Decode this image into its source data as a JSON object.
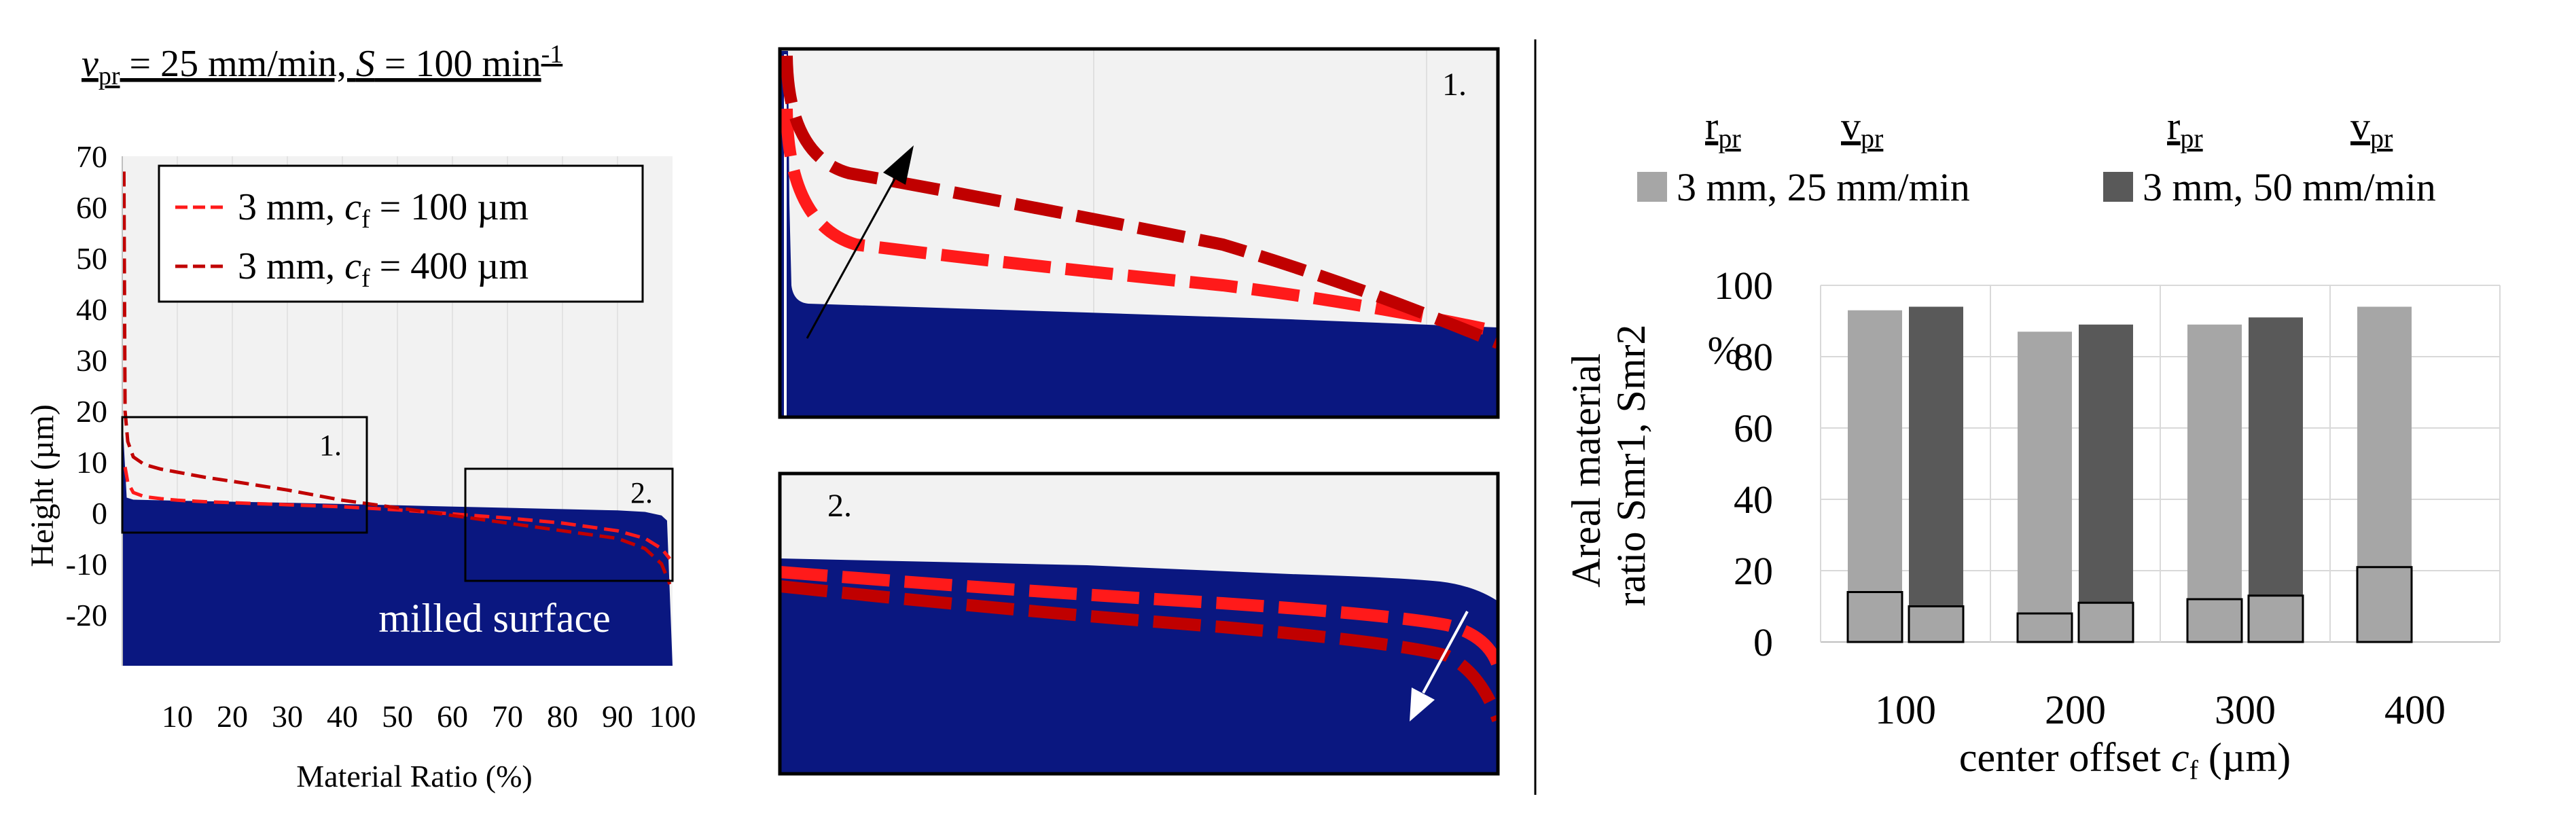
{
  "chart_data": [
    {
      "type": "line",
      "title": {
        "v_sym": "v",
        "v_sub": "pr",
        "v_rest": " = 25 mm/min, ",
        "s_sym": "S",
        "s_rest": " = 100 min",
        "s_sup": "-1"
      },
      "xlabel": "Material Ratio (%)",
      "ylabel": "Height  (µm)",
      "xlim": [
        0,
        100
      ],
      "ylim": [
        -30,
        70
      ],
      "xticks": [
        "10",
        "20",
        "30",
        "40",
        "50",
        "60",
        "70",
        "80",
        "90",
        "100"
      ],
      "yticks": [
        "70",
        "60",
        "50",
        "40",
        "30",
        "20",
        "10",
        "0",
        "-10",
        "-20"
      ],
      "area_label": "milled surface",
      "zoom_labels": [
        "1.",
        "2."
      ],
      "legend": [
        {
          "pre": "3 mm, ",
          "sym": "c",
          "sub": "f",
          "post": " = 100 µm"
        },
        {
          "pre": "3 mm, ",
          "sym": "c",
          "sub": "f",
          "post": " = 400 µm"
        }
      ],
      "colors": {
        "surface": "#0a1780",
        "series1": "#ff1a1a",
        "series2": "#c00000",
        "plot_bg": "#f2f2f2"
      },
      "series": [
        {
          "name": "3 mm, cf = 100 µm",
          "x": [
            0.5,
            1,
            2,
            4,
            7,
            10,
            15,
            20,
            30,
            40,
            50,
            60,
            70,
            80,
            90,
            95,
            98,
            99.5
          ],
          "y": [
            9,
            6,
            4,
            3.2,
            2.8,
            2.5,
            2.2,
            2,
            1.6,
            1.2,
            0.6,
            -0.2,
            -1,
            -2,
            -3.5,
            -5,
            -7,
            -9
          ]
        },
        {
          "name": "3 mm, cf = 400 µm",
          "x": [
            0.3,
            0.5,
            1,
            2,
            4,
            7,
            10,
            15,
            20,
            30,
            40,
            50,
            60,
            70,
            80,
            90,
            95,
            98,
            99.5
          ],
          "y": [
            67,
            20,
            14,
            11,
            9.5,
            8.6,
            8,
            7,
            6.2,
            4.5,
            2.5,
            1,
            -0.5,
            -2,
            -3.5,
            -5,
            -7,
            -10,
            -14
          ]
        },
        {
          "name": "milled surface",
          "x": [
            0,
            0.8,
            2,
            10,
            30,
            50,
            70,
            90,
            95,
            98,
            99,
            100
          ],
          "y": [
            19,
            3,
            2.6,
            2.4,
            2,
            1.5,
            1,
            0.5,
            0.2,
            -0.5,
            -1.5,
            -30
          ]
        }
      ]
    },
    {
      "type": "bar",
      "legend_header": [
        "r",
        "v",
        "r",
        "v"
      ],
      "legend_header_sub": [
        "pr",
        "pr",
        "pr",
        "pr"
      ],
      "legend": [
        "3 mm, 25 mm/min",
        "3 mm, 50 mm/min"
      ],
      "categories": [
        "100",
        "200",
        "300",
        "400"
      ],
      "xlabel": {
        "pre": "center offset ",
        "sym": "c",
        "sub": "f",
        "post": " (µm)"
      },
      "ylabel": [
        "Areal material",
        "ratio Smr1, Smr2"
      ],
      "unit_label": "%",
      "ylim": [
        0,
        100
      ],
      "yticks": [
        "100",
        "80",
        "60",
        "40",
        "20",
        "0"
      ],
      "grid": true,
      "colors": {
        "series1": "#a6a6a6",
        "series2": "#595959",
        "grid": "#d9d9d9"
      },
      "series": [
        {
          "name": "3 mm, 25 mm/min",
          "smr2": [
            93,
            87,
            89,
            94
          ],
          "smr1": [
            14,
            8,
            12,
            21
          ]
        },
        {
          "name": "3 mm, 50 mm/min",
          "smr2": [
            94,
            89,
            91,
            null
          ],
          "smr1": [
            10,
            11,
            13,
            null
          ]
        }
      ]
    }
  ],
  "zoom_panels": [
    {
      "label": "1."
    },
    {
      "label": "2."
    }
  ]
}
